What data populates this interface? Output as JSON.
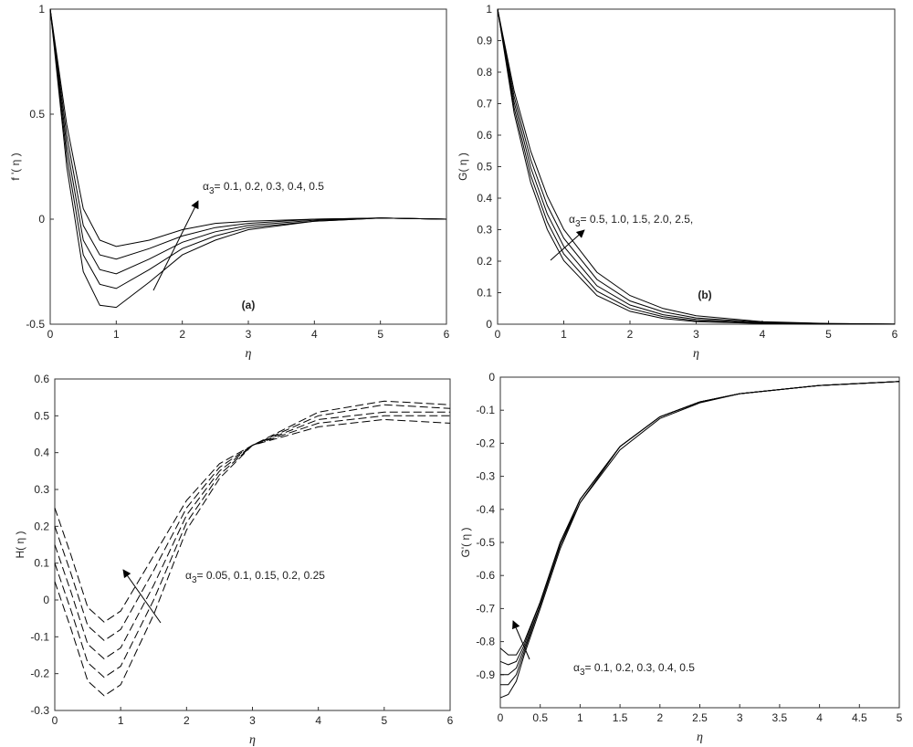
{
  "chart_data": [
    {
      "type": "line",
      "xlabel": "η",
      "ylabel": "f '( η )",
      "label": "(a)",
      "annotation": {
        "symbol": "α",
        "subscript": "3",
        "text": "= 0.1, 0.2, 0.3, 0.4, 0.5"
      },
      "x": [
        0,
        0.25,
        0.5,
        0.75,
        1,
        1.5,
        2,
        2.5,
        3,
        4,
        5,
        6
      ],
      "series": [
        {
          "color": "#000000",
          "values": [
            1,
            0.45,
            0.05,
            -0.1,
            -0.13,
            -0.1,
            -0.05,
            -0.02,
            -0.01,
            0,
            0.005,
            0
          ]
        },
        {
          "color": "#000000",
          "values": [
            1,
            0.4,
            -0.03,
            -0.17,
            -0.19,
            -0.14,
            -0.08,
            -0.04,
            -0.02,
            0,
            0.005,
            0
          ]
        },
        {
          "color": "#000000",
          "values": [
            1,
            0.35,
            -0.1,
            -0.24,
            -0.26,
            -0.19,
            -0.11,
            -0.06,
            -0.03,
            -0.005,
            0.005,
            0
          ]
        },
        {
          "color": "#000000",
          "values": [
            1,
            0.3,
            -0.17,
            -0.31,
            -0.33,
            -0.24,
            -0.14,
            -0.08,
            -0.04,
            -0.01,
            0.005,
            0
          ]
        },
        {
          "color": "#000000",
          "values": [
            1,
            0.25,
            -0.25,
            -0.41,
            -0.42,
            -0.3,
            -0.17,
            -0.1,
            -0.05,
            -0.01,
            0.005,
            0
          ]
        }
      ],
      "xlim": [
        0,
        6
      ],
      "xticks": [
        0,
        1,
        2,
        3,
        4,
        5,
        6
      ],
      "ylim": [
        -0.5,
        1
      ],
      "yticks": [
        -0.5,
        0,
        0.5,
        1
      ],
      "dashed": false
    },
    {
      "type": "line",
      "xlabel": "η",
      "ylabel": "G( η )",
      "label": "(b)",
      "annotation": {
        "symbol": "α",
        "subscript": "3",
        "text": "= 0.5, 1.0, 1.5, 2.0, 2.5,"
      },
      "x": [
        0,
        0.25,
        0.5,
        0.75,
        1,
        1.5,
        2,
        2.5,
        3,
        4,
        5,
        6
      ],
      "series": [
        {
          "color": "#000000",
          "values": [
            1,
            0.741,
            0.549,
            0.407,
            0.301,
            0.165,
            0.091,
            0.05,
            0.027,
            0.008,
            0.002,
            0.001
          ]
        },
        {
          "color": "#000000",
          "values": [
            1,
            0.723,
            0.522,
            0.377,
            0.273,
            0.142,
            0.074,
            0.039,
            0.02,
            0.006,
            0.002,
            0
          ]
        },
        {
          "color": "#000000",
          "values": [
            1,
            0.705,
            0.497,
            0.35,
            0.247,
            0.122,
            0.061,
            0.03,
            0.015,
            0.004,
            0.001,
            0
          ]
        },
        {
          "color": "#000000",
          "values": [
            1,
            0.687,
            0.472,
            0.325,
            0.223,
            0.105,
            0.05,
            0.024,
            0.011,
            0.002,
            0.001,
            0
          ]
        },
        {
          "color": "#000000",
          "values": [
            1,
            0.67,
            0.449,
            0.301,
            0.202,
            0.091,
            0.041,
            0.018,
            0.008,
            0.002,
            0,
            0
          ]
        }
      ],
      "xlim": [
        0,
        6
      ],
      "xticks": [
        0,
        1,
        2,
        3,
        4,
        5,
        6
      ],
      "ylim": [
        0,
        1
      ],
      "yticks": [
        0,
        0.1,
        0.2,
        0.3,
        0.4,
        0.5,
        0.6,
        0.7,
        0.8,
        0.9,
        1
      ],
      "dashed": false
    },
    {
      "type": "line",
      "xlabel": "η",
      "ylabel": "H( η )",
      "annotation": {
        "symbol": "α",
        "subscript": "3",
        "text": "= 0.05, 0.1, 0.15, 0.2, 0.25"
      },
      "x": [
        0,
        0.25,
        0.5,
        0.75,
        1,
        1.5,
        2,
        2.5,
        3,
        4,
        5,
        6
      ],
      "series": [
        {
          "color": "#000000",
          "values": [
            0.25,
            0.12,
            -0.02,
            -0.06,
            -0.03,
            0.12,
            0.27,
            0.37,
            0.42,
            0.47,
            0.49,
            0.48
          ]
        },
        {
          "color": "#000000",
          "values": [
            0.2,
            0.07,
            -0.07,
            -0.11,
            -0.08,
            0.08,
            0.25,
            0.36,
            0.42,
            0.48,
            0.5,
            0.5
          ]
        },
        {
          "color": "#000000",
          "values": [
            0.15,
            0.02,
            -0.12,
            -0.16,
            -0.13,
            0.04,
            0.23,
            0.35,
            0.42,
            0.49,
            0.51,
            0.51
          ]
        },
        {
          "color": "#000000",
          "values": [
            0.1,
            -0.03,
            -0.17,
            -0.21,
            -0.18,
            0,
            0.21,
            0.34,
            0.42,
            0.5,
            0.53,
            0.52
          ]
        },
        {
          "color": "#000000",
          "values": [
            0.05,
            -0.08,
            -0.22,
            -0.26,
            -0.23,
            -0.04,
            0.19,
            0.33,
            0.42,
            0.51,
            0.54,
            0.53
          ]
        }
      ],
      "xlim": [
        0,
        6
      ],
      "xticks": [
        0,
        1,
        2,
        3,
        4,
        5,
        6
      ],
      "ylim": [
        -0.3,
        0.6
      ],
      "yticks": [
        -0.3,
        -0.2,
        -0.1,
        0,
        0.1,
        0.2,
        0.3,
        0.4,
        0.5,
        0.6
      ],
      "dashed": true
    },
    {
      "type": "line",
      "xlabel": "η",
      "ylabel": "G'( η )",
      "annotation": {
        "symbol": "α",
        "subscript": "3",
        "text": "= 0.1, 0.2, 0.3, 0.4, 0.5"
      },
      "x": [
        0,
        0.1,
        0.2,
        0.3,
        0.5,
        0.75,
        1,
        1.5,
        2,
        2.5,
        3,
        4,
        5
      ],
      "series": [
        {
          "color": "#000000",
          "values": [
            -0.82,
            -0.84,
            -0.84,
            -0.8,
            -0.68,
            -0.5,
            -0.37,
            -0.21,
            -0.12,
            -0.075,
            -0.05,
            -0.025,
            -0.013
          ]
        },
        {
          "color": "#000000",
          "values": [
            -0.86,
            -0.87,
            -0.86,
            -0.81,
            -0.68,
            -0.5,
            -0.37,
            -0.21,
            -0.12,
            -0.075,
            -0.05,
            -0.025,
            -0.013
          ]
        },
        {
          "color": "#000000",
          "values": [
            -0.9,
            -0.9,
            -0.88,
            -0.82,
            -0.69,
            -0.51,
            -0.37,
            -0.21,
            -0.12,
            -0.075,
            -0.05,
            -0.025,
            -0.013
          ]
        },
        {
          "color": "#000000",
          "values": [
            -0.93,
            -0.93,
            -0.9,
            -0.83,
            -0.69,
            -0.51,
            -0.38,
            -0.21,
            -0.12,
            -0.075,
            -0.05,
            -0.025,
            -0.013
          ]
        },
        {
          "color": "#000000",
          "values": [
            -0.97,
            -0.96,
            -0.92,
            -0.84,
            -0.7,
            -0.52,
            -0.38,
            -0.22,
            -0.125,
            -0.078,
            -0.05,
            -0.025,
            -0.013
          ]
        }
      ],
      "xlim": [
        0,
        5
      ],
      "xticks": [
        0,
        0.5,
        1,
        1.5,
        2,
        2.5,
        3,
        3.5,
        4,
        4.5,
        5
      ],
      "ylim": [
        -1,
        0
      ],
      "yticks": [
        -0.9,
        -0.8,
        -0.7,
        -0.6,
        -0.5,
        -0.4,
        -0.3,
        -0.2,
        -0.1,
        0
      ],
      "dashed": false
    }
  ]
}
